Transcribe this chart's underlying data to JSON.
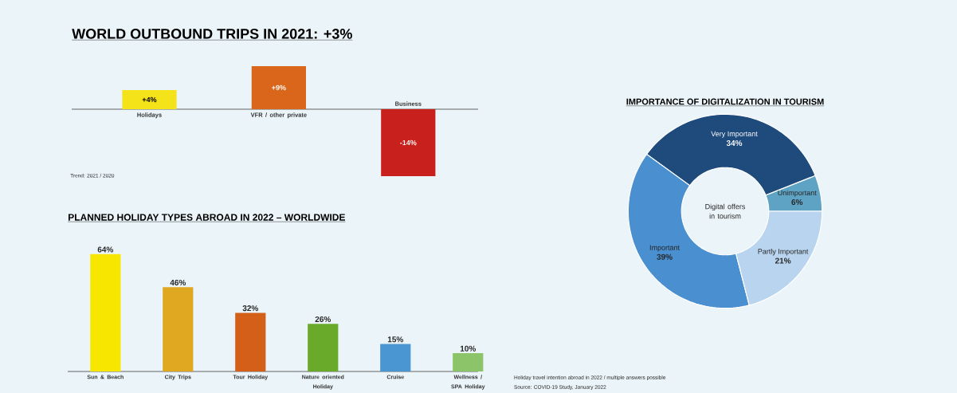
{
  "chart_data": [
    {
      "type": "bar",
      "title": "WORLD OUTBOUND TRIPS IN 2021: +3%",
      "categories": [
        "Holidays",
        "VFR / other private",
        "Business"
      ],
      "values": [
        4,
        9,
        -14
      ],
      "colors": [
        "#f5e31a",
        "#d9661a",
        "#c8201c"
      ],
      "value_labels": [
        "+4%",
        "+9%",
        "-14%"
      ],
      "annotations": [
        "Trend: 2021 / 2020"
      ]
    },
    {
      "type": "bar",
      "title": "PLANNED HOLIDAY TYPES ABROAD IN 2022 – WORLDWIDE",
      "categories": [
        "Sun & Beach",
        "City Trips",
        "Tour Holiday",
        "Nature oriented Holiday",
        "Cruise",
        "Wellness / SPA Holiday"
      ],
      "values": [
        64,
        46,
        32,
        26,
        15,
        10
      ],
      "colors": [
        "#f7e600",
        "#e0a820",
        "#d45f18",
        "#6aaa2a",
        "#4a96d2",
        "#8cc46a"
      ],
      "value_labels": [
        "64%",
        "46%",
        "32%",
        "26%",
        "15%",
        "10%"
      ],
      "annotations": [
        "Holiday travel intention abroad in 2022 / multiple answers possible",
        "Source: COVID-19 Study, January 2022"
      ]
    },
    {
      "type": "donut",
      "title": "IMPORTANCE OF DIGITALIZATION IN TOURISM",
      "categories": [
        "Unimportant",
        "Very Important",
        "Important",
        "Partly Important"
      ],
      "values": [
        6,
        34,
        39,
        21
      ],
      "colors": [
        "#5ea3c4",
        "#1e4a7c",
        "#4a8fd0",
        "#b8d4ee"
      ],
      "value_labels": [
        "6%",
        "34%",
        "39%",
        "21%"
      ],
      "annotations": [
        "Digital offers in tourism"
      ]
    }
  ]
}
